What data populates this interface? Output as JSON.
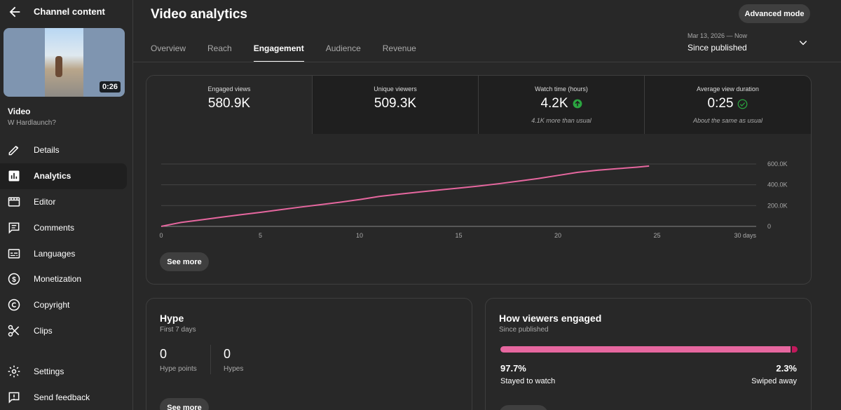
{
  "sidebar": {
    "title": "Channel content",
    "thumb_duration": "0:26",
    "video_title": "Video",
    "video_sub": "W Hardlaunch?",
    "items": [
      {
        "label": "Details"
      },
      {
        "label": "Analytics"
      },
      {
        "label": "Editor"
      },
      {
        "label": "Comments"
      },
      {
        "label": "Languages"
      },
      {
        "label": "Monetization"
      },
      {
        "label": "Copyright"
      },
      {
        "label": "Clips"
      }
    ],
    "bottom": [
      {
        "label": "Settings"
      },
      {
        "label": "Send feedback"
      }
    ]
  },
  "header": {
    "title": "Video analytics",
    "advanced": "Advanced mode",
    "tabs": [
      "Overview",
      "Reach",
      "Engagement",
      "Audience",
      "Revenue"
    ],
    "date_small": "Mar 13, 2026 — Now",
    "date_big": "Since published"
  },
  "metrics": [
    {
      "label": "Engaged views",
      "value": "580.9K",
      "note": ""
    },
    {
      "label": "Unique viewers",
      "value": "509.3K",
      "note": ""
    },
    {
      "label": "Watch time (hours)",
      "value": "4.2K",
      "note": "4.1K more than usual"
    },
    {
      "label": "Average view duration",
      "value": "0:25",
      "note": "About the same as usual"
    }
  ],
  "chart_data": {
    "type": "line",
    "title": "Engaged views",
    "xlabel": "",
    "ylabel": "",
    "x_ticks": [
      "0",
      "5",
      "10",
      "15",
      "20",
      "25",
      "30 days"
    ],
    "x_tick_values": [
      0,
      5,
      10,
      15,
      20,
      25,
      30
    ],
    "y_ticks": [
      "0",
      "200.0K",
      "400.0K",
      "600.0K"
    ],
    "y_tick_values": [
      0,
      200000,
      400000,
      600000
    ],
    "xlim": [
      0,
      30
    ],
    "ylim": [
      0,
      600000
    ],
    "series": [
      {
        "name": "Engaged views",
        "color": "#e6679f",
        "x": [
          0,
          1,
          2,
          3,
          4,
          5,
          6,
          7,
          8,
          9,
          10,
          11,
          12,
          13,
          14,
          15,
          16,
          17,
          18,
          19,
          20,
          21,
          22,
          23,
          24,
          24.6
        ],
        "y": [
          0,
          38000,
          62000,
          88000,
          112000,
          135000,
          160000,
          185000,
          208000,
          232000,
          258000,
          288000,
          310000,
          330000,
          350000,
          368000,
          388000,
          410000,
          435000,
          460000,
          490000,
          520000,
          540000,
          555000,
          570000,
          580900
        ]
      }
    ]
  },
  "chart_see_more": "See more",
  "hype": {
    "title": "Hype",
    "sub": "First 7 days",
    "points_value": "0",
    "points_label": "Hype points",
    "hypes_value": "0",
    "hypes_label": "Hypes",
    "see_more": "See more"
  },
  "engaged": {
    "title": "How viewers engaged",
    "sub": "Since published",
    "stayed_value": 97.7,
    "stayed_pct": "97.7%",
    "stayed_label": "Stayed to watch",
    "swiped_pct": "2.3%",
    "swiped_label": "Swiped away",
    "color_stayed": "#e6679f",
    "color_swiped": "#c2185b"
  }
}
